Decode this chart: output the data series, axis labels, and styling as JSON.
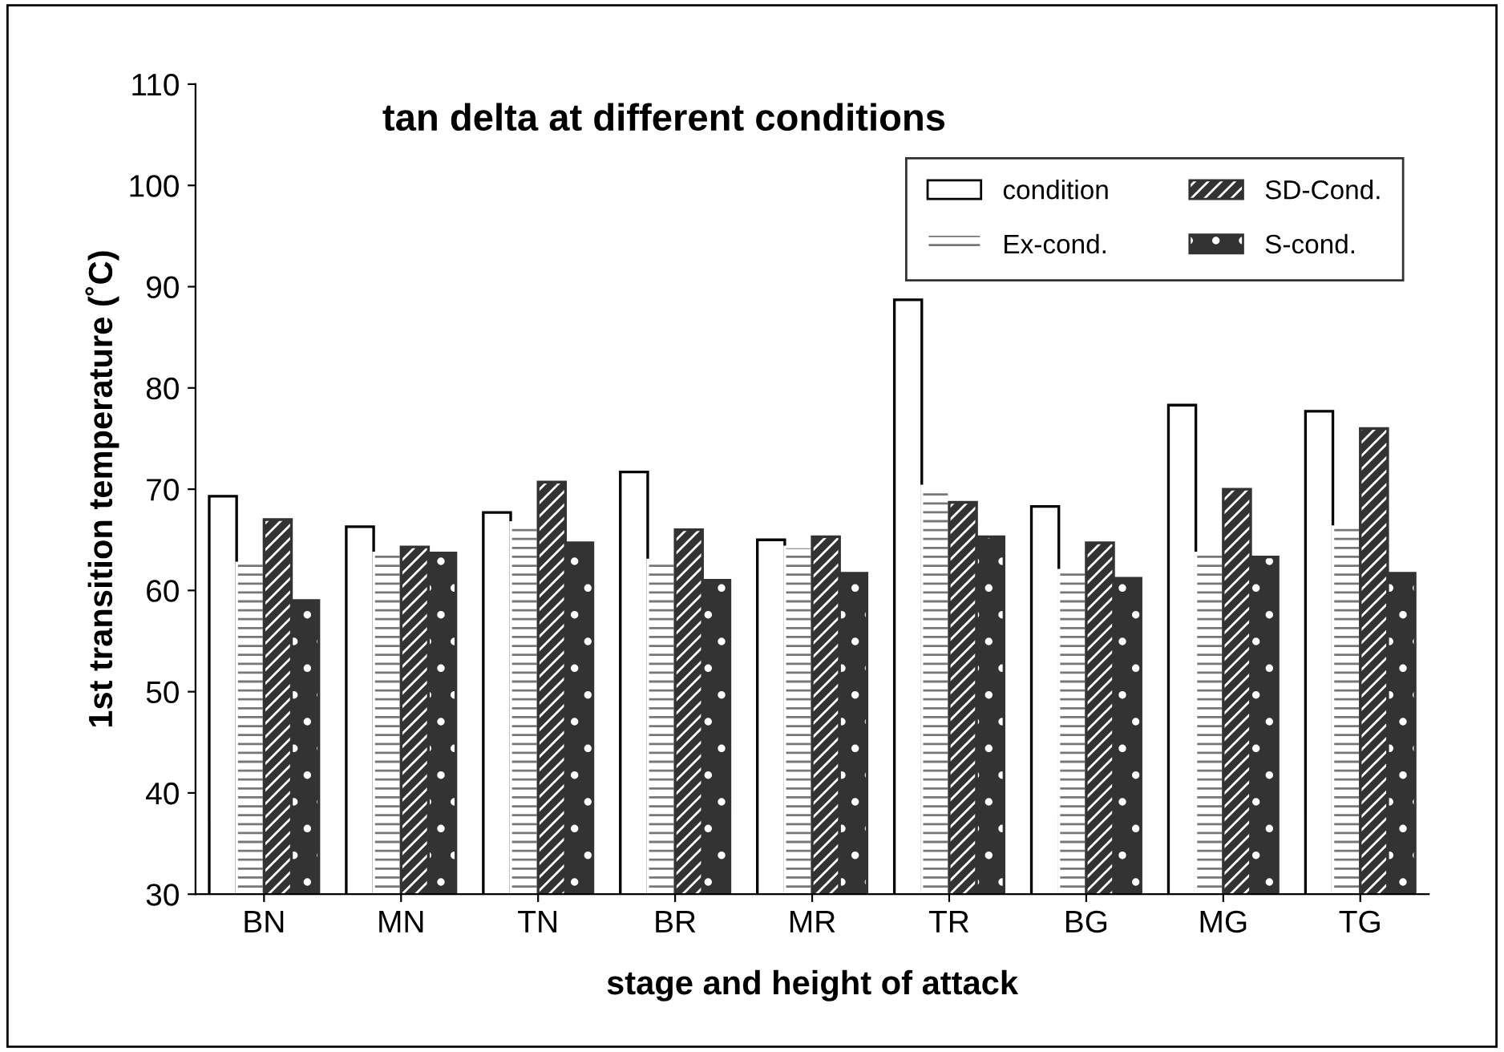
{
  "chart_data": {
    "type": "bar",
    "title": "tan delta at different conditions",
    "xlabel": "stage and height of attack",
    "ylabel": "1st transition temperature (˚C)",
    "categories": [
      "BN",
      "MN",
      "TN",
      "BR",
      "MR",
      "TR",
      "BG",
      "MG",
      "TG"
    ],
    "series": [
      {
        "name": "condition",
        "color": "#ffffff",
        "values": [
          69.3,
          66.3,
          67.7,
          71.7,
          65,
          88.7,
          68.3,
          78.3,
          77.7
        ]
      },
      {
        "name": "Ex-cond.",
        "color": "#ffffff",
        "values": [
          62.7,
          63.7,
          66.7,
          63,
          64.3,
          70.3,
          62,
          63.7,
          66.3
        ]
      },
      {
        "name": "SD-Cond.",
        "color": "#333333",
        "values": [
          67,
          64.3,
          70.7,
          66,
          65.3,
          68.7,
          64.7,
          70,
          76
        ]
      },
      {
        "name": "S-cond.",
        "color": "#333333",
        "values": [
          59,
          63.7,
          64.7,
          61,
          61.7,
          65.3,
          61.2,
          63.3,
          61.7
        ]
      }
    ],
    "ylim": [
      30,
      110
    ],
    "yticks": [
      30,
      40,
      50,
      60,
      70,
      80,
      90,
      100,
      110
    ],
    "grid": false,
    "legend": "top right"
  }
}
